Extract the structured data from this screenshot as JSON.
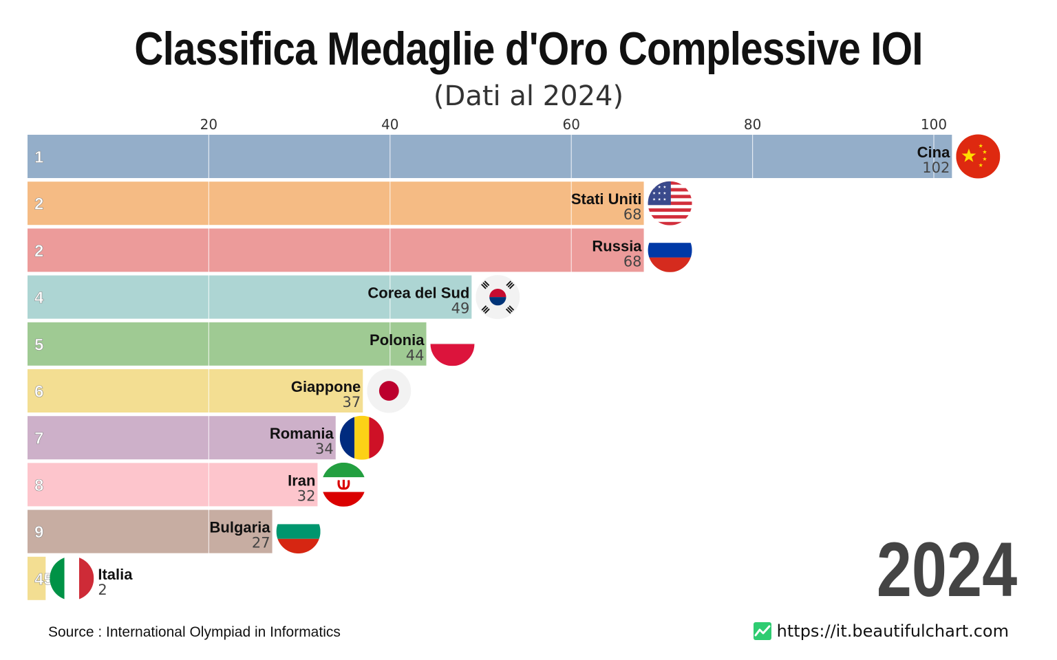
{
  "title": "Classifica Medaglie d'Oro Complessive IOI",
  "subtitle": "(Dati al 2024)",
  "source": "Source : International Olympiad in Informatics",
  "website": "https://it.beautifulchart.com",
  "colors": {
    "grid": "#ffffff",
    "bar_label": "#111111",
    "value_label": "#444444",
    "rank_label": "#ffffff",
    "year": "#444444"
  },
  "chart_data": {
    "type": "bar",
    "orientation": "horizontal",
    "title": "Classifica Medaglie d'Oro Complessive IOI",
    "subtitle": "(Dati al 2024)",
    "year": "2024",
    "xlim": [
      0,
      105
    ],
    "x_ticks": [
      20,
      40,
      60,
      80,
      100
    ],
    "x_axis_position": "top",
    "grid": true,
    "bars": [
      {
        "rank": "1",
        "country": "Cina",
        "value": 102,
        "color": "#94aec9",
        "flag": "china-flag-icon"
      },
      {
        "rank": "2",
        "country": "Stati Uniti",
        "value": 68,
        "color": "#f5bb84",
        "flag": "usa-flag-icon"
      },
      {
        "rank": "2",
        "country": "Russia",
        "value": 68,
        "color": "#ec9b9a",
        "flag": "russia-flag-icon"
      },
      {
        "rank": "4",
        "country": "Corea del Sud",
        "value": 49,
        "color": "#add5d3",
        "flag": "south-korea-flag-icon"
      },
      {
        "rank": "5",
        "country": "Polonia",
        "value": 44,
        "color": "#9fca93",
        "flag": "poland-flag-icon"
      },
      {
        "rank": "6",
        "country": "Giappone",
        "value": 37,
        "color": "#f3de92",
        "flag": "japan-flag-icon"
      },
      {
        "rank": "7",
        "country": "Romania",
        "value": 34,
        "color": "#cdb0c9",
        "flag": "romania-flag-icon"
      },
      {
        "rank": "8",
        "country": "Iran",
        "value": 32,
        "color": "#fdc5cc",
        "flag": "iran-flag-icon"
      },
      {
        "rank": "9",
        "country": "Bulgaria",
        "value": 27,
        "color": "#c7ada2",
        "flag": "bulgaria-flag-icon"
      },
      {
        "rank": "45",
        "country": "Italia",
        "value": 2,
        "color": "#f3de92",
        "flag": "italy-flag-icon"
      }
    ]
  }
}
